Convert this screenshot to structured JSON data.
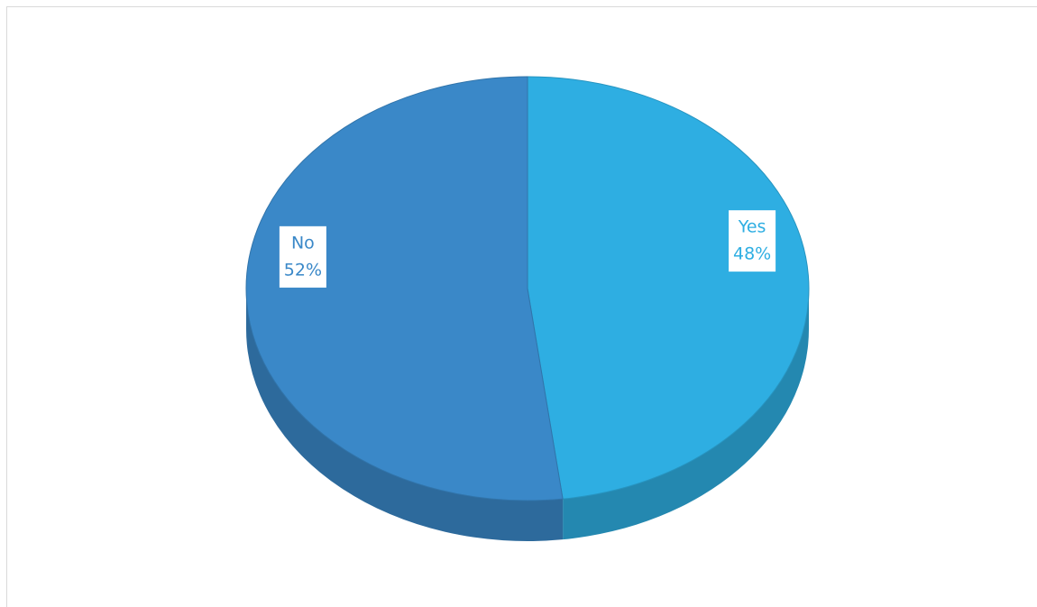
{
  "chart_data": {
    "type": "pie",
    "categories": [
      "Yes",
      "No"
    ],
    "values": [
      48,
      52
    ],
    "value_labels": [
      "48%",
      "52%"
    ],
    "colors": [
      "#2eaee2",
      "#3a88c8"
    ]
  }
}
